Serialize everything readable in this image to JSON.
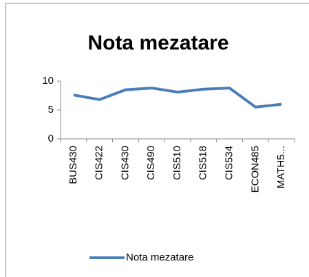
{
  "chart_data": {
    "type": "line",
    "title": "Nota mezatare",
    "categories": [
      "BUS430",
      "CIS422",
      "CIS430",
      "CIS490",
      "CIS510",
      "CIS518",
      "CIS534",
      "ECON485",
      "MATH5..."
    ],
    "series": [
      {
        "name": "Nota mezatare",
        "color": "#4a7ebb",
        "values": [
          7.6,
          6.8,
          8.5,
          8.8,
          8.1,
          8.6,
          8.8,
          5.5,
          6.0
        ]
      }
    ],
    "ylim": [
      0,
      10
    ],
    "yticks": [
      0,
      5,
      10
    ],
    "grid": false,
    "legend": "bottom"
  }
}
